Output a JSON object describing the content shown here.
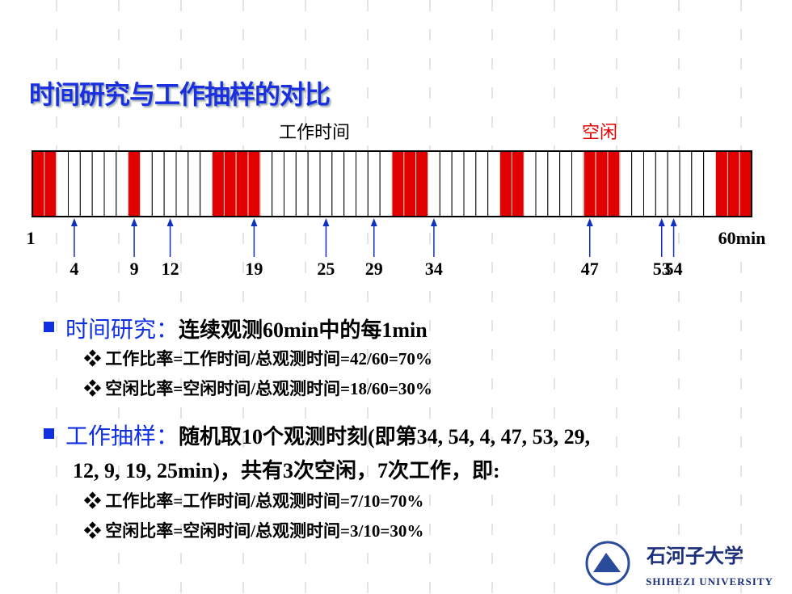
{
  "title": "时间研究与工作抽样的对比",
  "bar": {
    "work_label": "工作时间",
    "idle_label": "空闲",
    "idle_cells": [
      1,
      2,
      9,
      16,
      17,
      18,
      19,
      31,
      32,
      33,
      40,
      41,
      47,
      48,
      49,
      58,
      59,
      60
    ],
    "samples": [
      4,
      9,
      12,
      19,
      25,
      29,
      34,
      47,
      53,
      54
    ]
  },
  "scale": {
    "start": {
      "value": 1,
      "label": "1"
    },
    "end": {
      "value": 60,
      "label": "60min"
    }
  },
  "bullets": [
    {
      "key": "时间研究：",
      "lines": [
        "连续观测60min中的每1min"
      ],
      "subs": [
        "工作比率=工作时间/总观测时间=42/60=70%",
        "空闲比率=空闲时间/总观测时间=18/60=30%"
      ]
    },
    {
      "key": "工作抽样：",
      "lines": [
        "随机取10个观测时刻(即第34, 54, 4, 47, 53, 29,",
        "12, 9, 19, 25min)，共有3次空闲，7次工作，即:"
      ],
      "subs": [
        "工作比率=工作时间/总观测时间=7/10=70%",
        "空闲比率=空闲时间/总观测时间=3/10=30%"
      ]
    }
  ],
  "logo": {
    "cn": "石河子大学",
    "en": "SHIHEZI UNIVERSITY"
  }
}
